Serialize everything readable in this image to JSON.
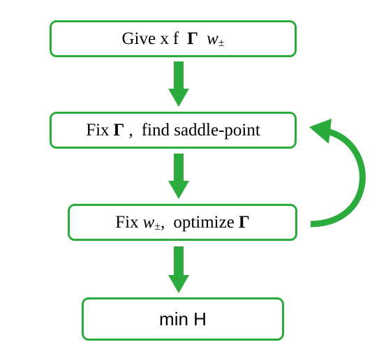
{
  "boxes": {
    "give": {
      "prefix": "Give x",
      "f": "f",
      "gamma": "Γ",
      "w": "w",
      "pm": "±"
    },
    "fix_gamma": {
      "prefix": "Fix",
      "gamma": "Γ",
      "comma": ",",
      "rest": "find saddle-point"
    },
    "fix_w": {
      "prefix": "Fix",
      "w": "w",
      "pm": "±",
      "comma": ",",
      "rest": "optimize",
      "gamma": "Γ"
    },
    "min": {
      "label": "min H"
    }
  },
  "colors": {
    "accent_green": "#2bab3c",
    "text": "#000000"
  }
}
